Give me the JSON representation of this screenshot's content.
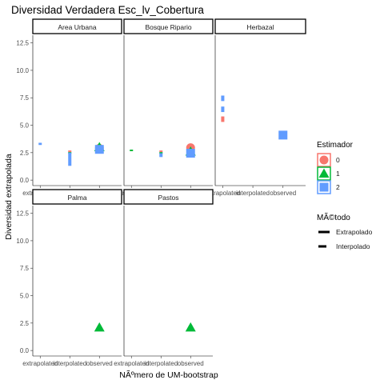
{
  "chart_data": {
    "type": "scatter",
    "title": "Diversidad Verdadera Esc_lv_Cobertura",
    "xlabel": "NÃºmero de UM-bootstrap",
    "ylabel": "Diversidad extrapolada",
    "categories": [
      "extrapolated",
      "interpolated",
      "observed"
    ],
    "y_ticks": [
      "0.0",
      "2.5",
      "5.0",
      "7.5",
      "10.0",
      "12.5"
    ],
    "ylim": [
      -0.5,
      13.2
    ],
    "grid": false,
    "legend_position": "right",
    "colors": {
      "0": "#F8766D",
      "1": "#00BA38",
      "2": "#619CFF"
    },
    "estimator_legend": {
      "title": "Estimador",
      "entries": [
        "0",
        "1",
        "2"
      ]
    },
    "method_legend": {
      "title": "MÃ©todo",
      "entries": [
        "Extrapolado",
        "Interpolado"
      ]
    },
    "panels": [
      {
        "name": "Area Urbana",
        "segments": [
          {
            "x": "extrapolated",
            "estimator": "2",
            "y0": 3.2,
            "y1": 3.4
          },
          {
            "x": "interpolated",
            "estimator": "0",
            "y0": 2.55,
            "y1": 2.7
          },
          {
            "x": "interpolated",
            "estimator": "1",
            "y0": 2.45,
            "y1": 2.55
          },
          {
            "x": "interpolated",
            "estimator": "2",
            "y0": 1.3,
            "y1": 2.5
          }
        ],
        "points": [
          {
            "x": "observed",
            "estimator": "0",
            "y": 2.9
          },
          {
            "x": "observed",
            "estimator": "1",
            "y": 3.0
          },
          {
            "x": "observed",
            "estimator": "2",
            "y": 2.8
          }
        ]
      },
      {
        "name": "Bosque Ripario",
        "segments": [
          {
            "x": "extrapolated",
            "estimator": "1",
            "y0": 2.72,
            "y1": 2.78
          },
          {
            "x": "interpolated",
            "estimator": "0",
            "y0": 2.55,
            "y1": 2.7
          },
          {
            "x": "interpolated",
            "estimator": "1",
            "y0": 2.45,
            "y1": 2.55
          },
          {
            "x": "interpolated",
            "estimator": "2",
            "y0": 2.1,
            "y1": 2.45
          }
        ],
        "points": [
          {
            "x": "observed",
            "estimator": "0",
            "y": 2.95
          },
          {
            "x": "observed",
            "estimator": "1",
            "y": 2.6
          },
          {
            "x": "observed",
            "estimator": "2",
            "y": 2.45
          }
        ]
      },
      {
        "name": "Herbazal",
        "segments": [
          {
            "x": "extrapolated",
            "estimator": "2",
            "y0": 7.2,
            "y1": 7.7
          },
          {
            "x": "extrapolated",
            "estimator": "2",
            "y0": 6.2,
            "y1": 6.7
          },
          {
            "x": "extrapolated",
            "estimator": "0",
            "y0": 5.3,
            "y1": 5.8
          }
        ],
        "points": [
          {
            "x": "observed",
            "estimator": "2",
            "y": 4.1
          }
        ]
      },
      {
        "name": "Palma",
        "segments": [],
        "points": [
          {
            "x": "observed",
            "estimator": "1",
            "y": 2.1
          }
        ]
      },
      {
        "name": "Pastos",
        "segments": [],
        "points": [
          {
            "x": "observed",
            "estimator": "1",
            "y": 2.1
          }
        ]
      }
    ]
  }
}
